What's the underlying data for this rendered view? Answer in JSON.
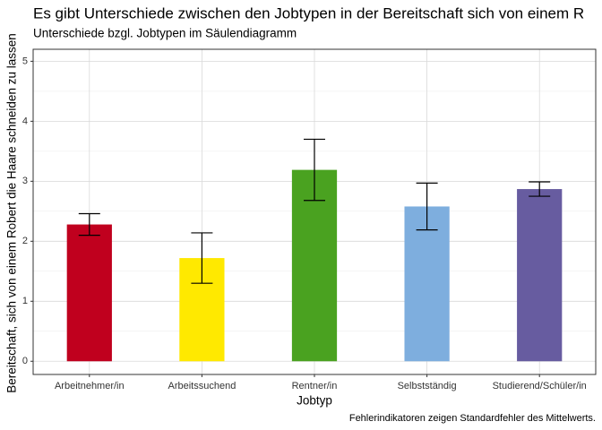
{
  "chart_data": {
    "type": "bar",
    "title": "Es gibt Unterschiede zwischen den Jobtypen in der Bereitschaft sich von einem R",
    "subtitle": "Unterschiede bzgl. Jobtypen im Säulendiagramm",
    "x_label": "Jobtyp",
    "y_label": "Bereitschaft, sich von einem Robert die Haare schneiden zu lassen",
    "caption": "Fehlerindikatoren zeigen Standardfehler des Mittelwerts.",
    "categories": [
      "Arbeitnehmer/in",
      "Arbeitssuchend",
      "Rentner/in",
      "Selbstständig",
      "Studierend/Schüler/in"
    ],
    "values": [
      2.28,
      1.72,
      3.19,
      2.58,
      2.87
    ],
    "errors": [
      0.18,
      0.42,
      0.51,
      0.39,
      0.12
    ],
    "colors": [
      "#c0001e",
      "#ffe900",
      "#4aa220",
      "#7eaede",
      "#675ca0"
    ],
    "ylim": [
      -0.22,
      5.2
    ],
    "yticks": [
      0,
      1,
      2,
      3,
      4,
      5
    ],
    "grid": true
  }
}
